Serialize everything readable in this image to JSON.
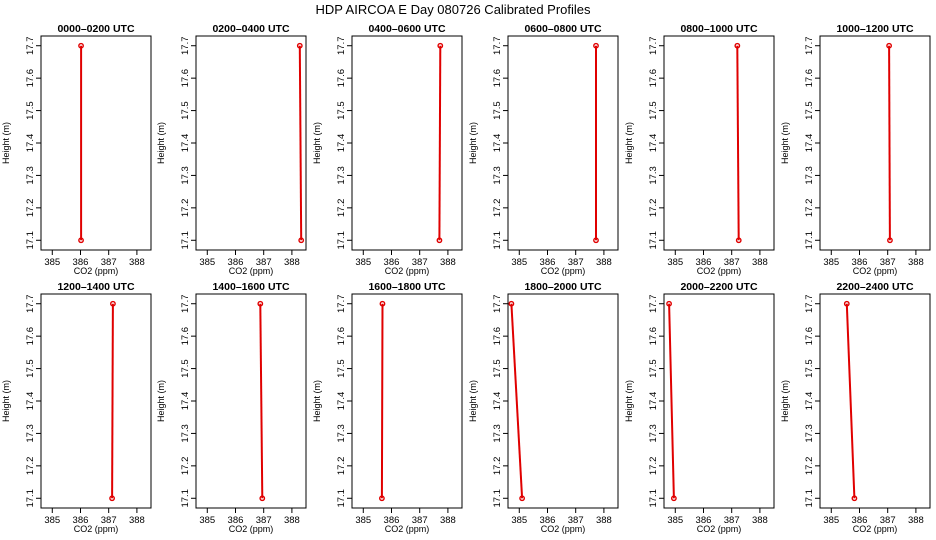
{
  "title": "HDP AIRCOA E  Day 080726  Calibrated Profiles",
  "chart_data": [
    {
      "type": "line",
      "title": "0000–0200 UTC",
      "xlabel": "CO2 (ppm)",
      "ylabel": "Height (m)",
      "xlim": [
        384.6,
        388.5
      ],
      "ylim": [
        17.07,
        17.73
      ],
      "xticks": [
        385,
        386,
        387,
        388
      ],
      "yticks": [
        17.1,
        17.2,
        17.3,
        17.4,
        17.5,
        17.6,
        17.7
      ],
      "grid": false,
      "series": [
        {
          "x": [
            386.02,
            386.02
          ],
          "y": [
            17.7,
            17.1
          ]
        }
      ]
    },
    {
      "type": "line",
      "title": "0200–0400 UTC",
      "xlabel": "CO2 (ppm)",
      "ylabel": "Height (m)",
      "xlim": [
        384.6,
        388.5
      ],
      "ylim": [
        17.07,
        17.73
      ],
      "xticks": [
        385,
        386,
        387,
        388
      ],
      "yticks": [
        17.1,
        17.2,
        17.3,
        17.4,
        17.5,
        17.6,
        17.7
      ],
      "grid": false,
      "series": [
        {
          "x": [
            388.28,
            388.33
          ],
          "y": [
            17.7,
            17.1
          ]
        }
      ]
    },
    {
      "type": "line",
      "title": "0400–0600 UTC",
      "xlabel": "CO2 (ppm)",
      "ylabel": "Height (m)",
      "xlim": [
        384.6,
        388.5
      ],
      "ylim": [
        17.07,
        17.73
      ],
      "xticks": [
        385,
        386,
        387,
        388
      ],
      "yticks": [
        17.1,
        17.2,
        17.3,
        17.4,
        17.5,
        17.6,
        17.7
      ],
      "grid": false,
      "series": [
        {
          "x": [
            387.73,
            387.7
          ],
          "y": [
            17.7,
            17.1
          ]
        }
      ]
    },
    {
      "type": "line",
      "title": "0600–0800 UTC",
      "xlabel": "CO2 (ppm)",
      "ylabel": "Height (m)",
      "xlim": [
        384.6,
        388.5
      ],
      "ylim": [
        17.07,
        17.73
      ],
      "xticks": [
        385,
        386,
        387,
        388
      ],
      "yticks": [
        17.1,
        17.2,
        17.3,
        17.4,
        17.5,
        17.6,
        17.7
      ],
      "grid": false,
      "series": [
        {
          "x": [
            387.72,
            387.72
          ],
          "y": [
            17.7,
            17.1
          ]
        }
      ]
    },
    {
      "type": "line",
      "title": "0800–1000 UTC",
      "xlabel": "CO2 (ppm)",
      "ylabel": "Height (m)",
      "xlim": [
        384.6,
        388.5
      ],
      "ylim": [
        17.07,
        17.73
      ],
      "xticks": [
        385,
        386,
        387,
        388
      ],
      "yticks": [
        17.1,
        17.2,
        17.3,
        17.4,
        17.5,
        17.6,
        17.7
      ],
      "grid": false,
      "series": [
        {
          "x": [
            387.2,
            387.25
          ],
          "y": [
            17.7,
            17.1
          ]
        }
      ]
    },
    {
      "type": "line",
      "title": "1000–1200 UTC",
      "xlabel": "CO2 (ppm)",
      "ylabel": "Height (m)",
      "xlim": [
        384.6,
        388.5
      ],
      "ylim": [
        17.07,
        17.73
      ],
      "xticks": [
        385,
        386,
        387,
        388
      ],
      "yticks": [
        17.1,
        17.2,
        17.3,
        17.4,
        17.5,
        17.6,
        17.7
      ],
      "grid": false,
      "series": [
        {
          "x": [
            387.05,
            387.08
          ],
          "y": [
            17.7,
            17.1
          ]
        }
      ]
    },
    {
      "type": "line",
      "title": "1200–1400 UTC",
      "xlabel": "CO2 (ppm)",
      "ylabel": "Height (m)",
      "xlim": [
        384.6,
        388.5
      ],
      "ylim": [
        17.07,
        17.73
      ],
      "xticks": [
        385,
        386,
        387,
        388
      ],
      "yticks": [
        17.1,
        17.2,
        17.3,
        17.4,
        17.5,
        17.6,
        17.7
      ],
      "grid": false,
      "series": [
        {
          "x": [
            387.15,
            387.12
          ],
          "y": [
            17.7,
            17.1
          ]
        }
      ]
    },
    {
      "type": "line",
      "title": "1400–1600 UTC",
      "xlabel": "CO2 (ppm)",
      "ylabel": "Height (m)",
      "xlim": [
        384.6,
        388.5
      ],
      "ylim": [
        17.07,
        17.73
      ],
      "xticks": [
        385,
        386,
        387,
        388
      ],
      "yticks": [
        17.1,
        17.2,
        17.3,
        17.4,
        17.5,
        17.6,
        17.7
      ],
      "grid": false,
      "series": [
        {
          "x": [
            386.88,
            386.95
          ],
          "y": [
            17.7,
            17.1
          ]
        }
      ]
    },
    {
      "type": "line",
      "title": "1600–1800 UTC",
      "xlabel": "CO2 (ppm)",
      "ylabel": "Height (m)",
      "xlim": [
        384.6,
        388.5
      ],
      "ylim": [
        17.07,
        17.73
      ],
      "xticks": [
        385,
        386,
        387,
        388
      ],
      "yticks": [
        17.1,
        17.2,
        17.3,
        17.4,
        17.5,
        17.6,
        17.7
      ],
      "grid": false,
      "series": [
        {
          "x": [
            385.68,
            385.66
          ],
          "y": [
            17.7,
            17.1
          ]
        }
      ]
    },
    {
      "type": "line",
      "title": "1800–2000 UTC",
      "xlabel": "CO2 (ppm)",
      "ylabel": "Height (m)",
      "xlim": [
        384.6,
        388.5
      ],
      "ylim": [
        17.07,
        17.73
      ],
      "xticks": [
        385,
        386,
        387,
        388
      ],
      "yticks": [
        17.1,
        17.2,
        17.3,
        17.4,
        17.5,
        17.6,
        17.7
      ],
      "grid": false,
      "series": [
        {
          "x": [
            384.72,
            385.1
          ],
          "y": [
            17.7,
            17.1
          ]
        }
      ]
    },
    {
      "type": "line",
      "title": "2000–2200 UTC",
      "xlabel": "CO2 (ppm)",
      "ylabel": "Height (m)",
      "xlim": [
        384.6,
        388.5
      ],
      "ylim": [
        17.07,
        17.73
      ],
      "xticks": [
        385,
        386,
        387,
        388
      ],
      "yticks": [
        17.1,
        17.2,
        17.3,
        17.4,
        17.5,
        17.6,
        17.7
      ],
      "grid": false,
      "series": [
        {
          "x": [
            384.78,
            384.95
          ],
          "y": [
            17.7,
            17.1
          ]
        }
      ]
    },
    {
      "type": "line",
      "title": "2200–2400 UTC",
      "xlabel": "CO2 (ppm)",
      "ylabel": "Height (m)",
      "xlim": [
        384.6,
        388.5
      ],
      "ylim": [
        17.07,
        17.73
      ],
      "xticks": [
        385,
        386,
        387,
        388
      ],
      "yticks": [
        17.1,
        17.2,
        17.3,
        17.4,
        17.5,
        17.6,
        17.7
      ],
      "grid": false,
      "series": [
        {
          "x": [
            385.55,
            385.82
          ],
          "y": [
            17.7,
            17.1
          ]
        }
      ]
    }
  ],
  "colors": {
    "series": "#e00000",
    "axes": "#000000",
    "background": "#ffffff"
  }
}
